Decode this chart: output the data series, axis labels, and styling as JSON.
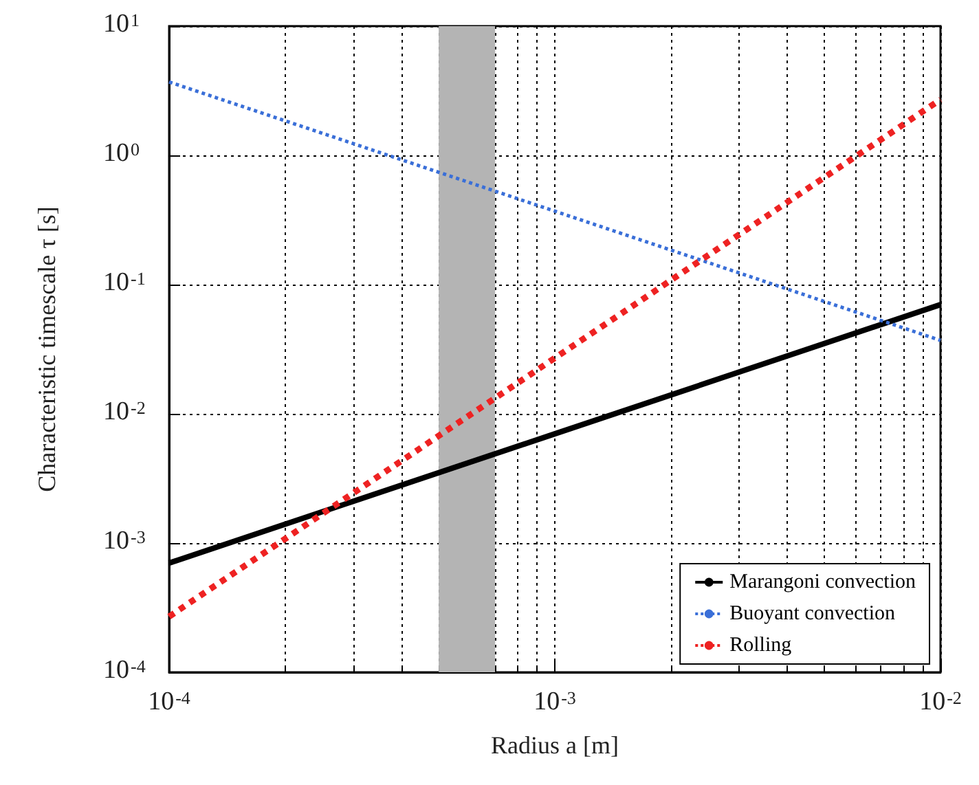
{
  "chart_data": {
    "type": "line",
    "xlabel": "Radius a [m]",
    "ylabel": "Characteristic timescale τ [s]",
    "log": "xy",
    "grid": true,
    "legend": "bottom right",
    "xlim": [
      0.0001,
      0.01
    ],
    "ylim": [
      0.0001,
      10
    ],
    "xticks": [
      {
        "value": 0.0001,
        "label": "10$^{-4}$"
      },
      {
        "value": 0.001,
        "label": "10$^{-3}$"
      },
      {
        "value": 0.01,
        "label": "10$^{-2}$"
      }
    ],
    "yticks": [
      {
        "value": 0.0001,
        "label": "10$^{-4}$"
      },
      {
        "value": 0.001,
        "label": "10$^{-3}$"
      },
      {
        "value": 0.01,
        "label": "10$^{-2}$"
      },
      {
        "value": 0.1,
        "label": "10$^{-1}$"
      },
      {
        "value": 1,
        "label": "10$^{0}$"
      },
      {
        "value": 10,
        "label": "10$^{1}$"
      }
    ],
    "x": [
      0.0001,
      0.001,
      0.01
    ],
    "series": [
      {
        "name": "Marangoni convection",
        "color": "#000000",
        "line_style": "solid",
        "values": [
          0.0007,
          0.007,
          0.07
        ]
      },
      {
        "name": "Buoyant convection",
        "color": "#3a6fd8",
        "line_style": "dotted",
        "values": [
          3.7,
          0.37,
          0.037
        ]
      },
      {
        "name": "Rolling",
        "color": "#ee2222",
        "line_style": "dotted",
        "values": [
          0.00027,
          0.027,
          2.7
        ]
      }
    ],
    "bands": [
      {
        "axis": "x",
        "from": 0.0005,
        "to": 0.0007,
        "color": "#b4b4b4"
      }
    ]
  }
}
